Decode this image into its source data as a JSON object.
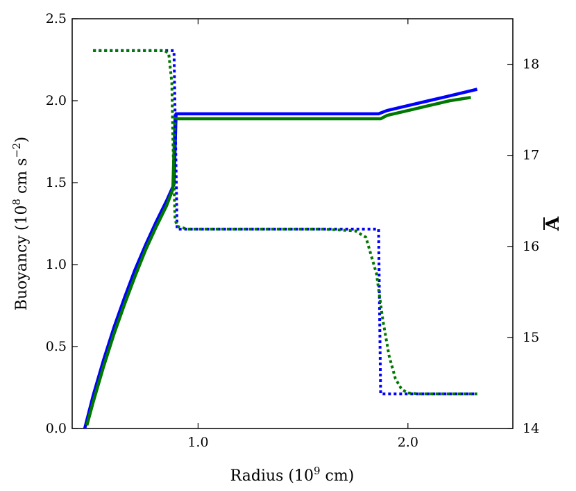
{
  "chart_data": {
    "type": "line",
    "title": "",
    "xlabel": "Radius (10^9 cm)",
    "ylabel": "Buoyancy (10^8 cm s^-2)",
    "y2label": "A",
    "xlim": [
      0.4,
      2.5
    ],
    "ylim": [
      0.0,
      2.5
    ],
    "y2lim": [
      14.0,
      18.5
    ],
    "xticks": [
      1.0,
      2.0
    ],
    "xtick_labels": [
      "1.0",
      "2.0"
    ],
    "yticks": [
      0.0,
      0.5,
      1.0,
      1.5,
      2.0,
      2.5
    ],
    "ytick_labels": [
      "0.0",
      "0.5",
      "1.0",
      "1.5",
      "2.0",
      "2.5"
    ],
    "y2ticks": [
      14,
      15,
      16,
      17,
      18
    ],
    "y2tick_labels": [
      "14",
      "15",
      "16",
      "17",
      "18"
    ],
    "grid": false,
    "legend": "none",
    "series": [
      {
        "axis": "left",
        "color": "#0000ff",
        "style": "solid",
        "x": [
          0.46,
          0.5,
          0.55,
          0.6,
          0.65,
          0.7,
          0.75,
          0.8,
          0.85,
          0.885,
          0.895,
          1.0,
          1.2,
          1.4,
          1.6,
          1.8,
          1.86,
          1.9,
          2.0,
          2.1,
          2.2,
          2.33
        ],
        "y": [
          0.0,
          0.2,
          0.42,
          0.62,
          0.8,
          0.97,
          1.12,
          1.26,
          1.39,
          1.49,
          1.92,
          1.92,
          1.92,
          1.92,
          1.92,
          1.92,
          1.92,
          1.94,
          1.97,
          2.0,
          2.03,
          2.07
        ]
      },
      {
        "axis": "left",
        "color": "#007700",
        "style": "solid",
        "x": [
          0.47,
          0.5,
          0.55,
          0.6,
          0.65,
          0.7,
          0.75,
          0.8,
          0.85,
          0.88,
          0.89,
          1.0,
          1.2,
          1.4,
          1.6,
          1.8,
          1.87,
          1.9,
          2.0,
          2.1,
          2.2,
          2.3
        ],
        "y": [
          0.02,
          0.16,
          0.38,
          0.58,
          0.76,
          0.93,
          1.09,
          1.23,
          1.36,
          1.46,
          1.89,
          1.89,
          1.89,
          1.89,
          1.89,
          1.89,
          1.89,
          1.91,
          1.94,
          1.97,
          2.0,
          2.02
        ]
      },
      {
        "axis": "right",
        "color": "#0000ff",
        "style": "dotted",
        "x": [
          0.5,
          0.885,
          0.9,
          1.2,
          1.6,
          1.86,
          1.87,
          2.0,
          2.33
        ],
        "y": [
          18.15,
          18.15,
          16.19,
          16.19,
          16.19,
          16.19,
          14.38,
          14.38,
          14.38
        ]
      },
      {
        "axis": "right",
        "color": "#007700",
        "style": "dotted",
        "x": [
          0.5,
          0.84,
          0.86,
          0.875,
          0.88,
          0.885,
          0.89,
          0.9,
          0.95,
          1.2,
          1.6,
          1.75,
          1.8,
          1.85,
          1.88,
          1.91,
          1.94,
          1.97,
          2.0,
          2.05,
          2.33
        ],
        "y": [
          18.15,
          18.15,
          18.12,
          17.8,
          17.2,
          16.7,
          16.3,
          16.22,
          16.19,
          16.19,
          16.19,
          16.17,
          16.1,
          15.7,
          15.2,
          14.8,
          14.55,
          14.43,
          14.39,
          14.38,
          14.38
        ]
      }
    ]
  }
}
